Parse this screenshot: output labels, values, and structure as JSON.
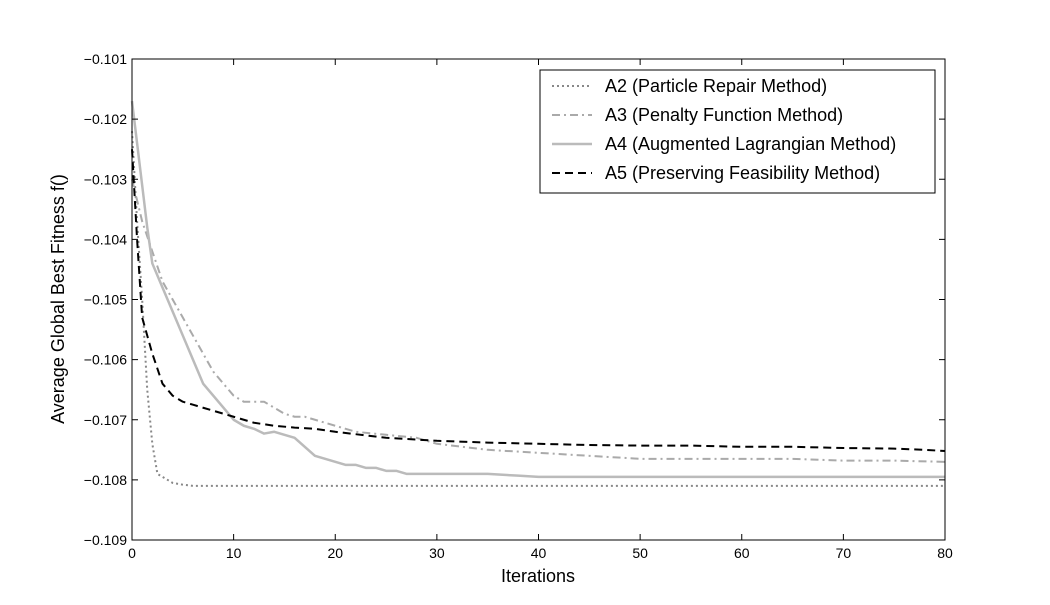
{
  "chart_data": {
    "type": "line",
    "title": "",
    "xlabel": "Iterations",
    "ylabel": "Average Global Best Fitness f()",
    "xlim": [
      0,
      80
    ],
    "ylim": [
      -0.109,
      -0.101
    ],
    "xticks": [
      0,
      10,
      20,
      30,
      40,
      50,
      60,
      70,
      80
    ],
    "xtick_labels": [
      "0",
      "10",
      "20",
      "30",
      "40",
      "50",
      "60",
      "70",
      "80"
    ],
    "yticks": [
      -0.101,
      -0.102,
      -0.103,
      -0.104,
      -0.105,
      -0.106,
      -0.107,
      -0.108,
      -0.109
    ],
    "ytick_labels": [
      "−0.101",
      "−0.102",
      "−0.103",
      "−0.104",
      "−0.105",
      "−0.106",
      "−0.107",
      "−0.108",
      "−0.109"
    ],
    "grid": false,
    "legend_position": "top-right",
    "series": [
      {
        "name": "A2 (Particle Repair Method)",
        "color": "#888888",
        "style": "dotted",
        "x": [
          0,
          0.5,
          1,
          1.5,
          2,
          2.5,
          3,
          4,
          5,
          6,
          7,
          8,
          10,
          15,
          20,
          30,
          40,
          50,
          60,
          70,
          80
        ],
        "y": [
          -0.1022,
          -0.1037,
          -0.105,
          -0.1065,
          -0.1074,
          -0.1079,
          -0.10795,
          -0.10805,
          -0.10808,
          -0.1081,
          -0.1081,
          -0.1081,
          -0.1081,
          -0.1081,
          -0.1081,
          -0.1081,
          -0.1081,
          -0.1081,
          -0.1081,
          -0.1081,
          -0.1081
        ]
      },
      {
        "name": "A3 (Penalty Function Method)",
        "color": "#aaaaaa",
        "style": "dashdot",
        "x": [
          0,
          1,
          2,
          3,
          4,
          5,
          6,
          7,
          8,
          9,
          10,
          11,
          12,
          13,
          14,
          15,
          16,
          17,
          18,
          19,
          20,
          22,
          25,
          28,
          30,
          35,
          40,
          45,
          50,
          55,
          60,
          65,
          70,
          75,
          80
        ],
        "y": [
          -0.103,
          -0.1037,
          -0.1042,
          -0.1047,
          -0.105,
          -0.1053,
          -0.1056,
          -0.1059,
          -0.1062,
          -0.1064,
          -0.1066,
          -0.1067,
          -0.1067,
          -0.1067,
          -0.1068,
          -0.1069,
          -0.10695,
          -0.10695,
          -0.107,
          -0.10705,
          -0.1071,
          -0.1072,
          -0.10725,
          -0.1073,
          -0.1074,
          -0.1075,
          -0.10755,
          -0.1076,
          -0.10765,
          -0.10765,
          -0.10765,
          -0.10765,
          -0.10768,
          -0.10768,
          -0.1077
        ]
      },
      {
        "name": "A4 (Augmented Lagrangian Method)",
        "color": "#bbbbbb",
        "style": "solid",
        "x": [
          0,
          0.5,
          1,
          1.5,
          2,
          3,
          4,
          5,
          6,
          7,
          8,
          9,
          10,
          11,
          12,
          13,
          14,
          15,
          16,
          17,
          18,
          19,
          20,
          21,
          22,
          23,
          24,
          25,
          26,
          27,
          28,
          30,
          35,
          38,
          40,
          45,
          50,
          60,
          70,
          80
        ],
        "y": [
          -0.1017,
          -0.1024,
          -0.1031,
          -0.1038,
          -0.1044,
          -0.1048,
          -0.1052,
          -0.1056,
          -0.106,
          -0.1064,
          -0.1066,
          -0.1068,
          -0.107,
          -0.1071,
          -0.10715,
          -0.10723,
          -0.1072,
          -0.10725,
          -0.1073,
          -0.10745,
          -0.1076,
          -0.10765,
          -0.1077,
          -0.10775,
          -0.10775,
          -0.1078,
          -0.1078,
          -0.10785,
          -0.10785,
          -0.1079,
          -0.1079,
          -0.1079,
          -0.1079,
          -0.10793,
          -0.10795,
          -0.10795,
          -0.10795,
          -0.10795,
          -0.10795,
          -0.10795
        ]
      },
      {
        "name": "A5 (Preserving Feasibility Method)",
        "color": "#000000",
        "style": "dashed",
        "x": [
          0,
          0.5,
          1,
          2,
          3,
          4,
          5,
          6,
          7,
          8,
          9,
          10,
          12,
          14,
          16,
          18,
          20,
          25,
          30,
          35,
          40,
          45,
          50,
          55,
          60,
          65,
          70,
          75,
          78,
          80
        ],
        "y": [
          -0.1025,
          -0.104,
          -0.1053,
          -0.1059,
          -0.1064,
          -0.1066,
          -0.1067,
          -0.10675,
          -0.1068,
          -0.10685,
          -0.1069,
          -0.10695,
          -0.10705,
          -0.1071,
          -0.10713,
          -0.10715,
          -0.1072,
          -0.1073,
          -0.10735,
          -0.10738,
          -0.1074,
          -0.10742,
          -0.10743,
          -0.10743,
          -0.10745,
          -0.10745,
          -0.10747,
          -0.10748,
          -0.1075,
          -0.10752
        ]
      }
    ]
  }
}
